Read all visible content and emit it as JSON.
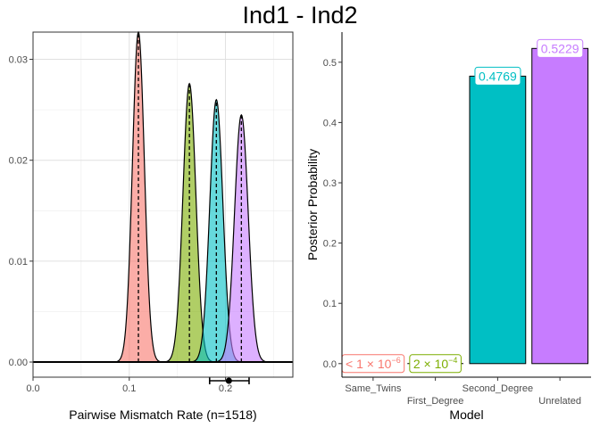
{
  "title": "Ind1 - Ind2",
  "chart_data": [
    {
      "type": "area",
      "xlabel": "Pairwise Mismatch Rate (n=1518)",
      "ylabel": "",
      "xlim": [
        0,
        0.27
      ],
      "ylim": [
        -0.0015,
        0.0327
      ],
      "x_ticks": [
        0.0,
        0.1,
        0.2
      ],
      "x_tick_labels": [
        "0.0",
        "0.1",
        "0.2"
      ],
      "y_ticks": [
        0.0,
        0.01,
        0.02,
        0.03
      ],
      "y_tick_labels": [
        "0.00",
        "0.01",
        "0.02",
        "0.03"
      ],
      "grid": true,
      "legend": "none",
      "series": [
        {
          "mean": 0.1095,
          "sd": 0.0062,
          "peak": 0.0327,
          "color": "#F8766D"
        },
        {
          "mean": 0.1625,
          "sd": 0.0067,
          "peak": 0.0276,
          "color": "#7CAE00"
        },
        {
          "mean": 0.1905,
          "sd": 0.0068,
          "peak": 0.026,
          "color": "#00BFC4"
        },
        {
          "mean": 0.2165,
          "sd": 0.0071,
          "peak": 0.0245,
          "color": "#C77CFF"
        }
      ],
      "observed": {
        "value": 0.2035,
        "lower": 0.1835,
        "upper": 0.2245
      }
    },
    {
      "type": "bar",
      "xlabel": "Model",
      "ylabel": "Posterior Probability",
      "ylim": [
        -0.0225,
        0.55
      ],
      "y_ticks": [
        0.0,
        0.1,
        0.2,
        0.3,
        0.4,
        0.5
      ],
      "y_tick_labels": [
        "0.0",
        "0.1",
        "0.2",
        "0.3",
        "0.4",
        "0.5"
      ],
      "categories": [
        "Same_Twins",
        "First_Degree",
        "Second_Degree",
        "Unrelated"
      ],
      "values": [
        1e-06,
        0.0002,
        0.4769,
        0.5229
      ],
      "labels": [
        {
          "base": "< 1 × 10",
          "exp": "−6"
        },
        {
          "base": "2 × 10",
          "exp": "−4"
        },
        {
          "base": "0.4769",
          "exp": ""
        },
        {
          "base": "0.5229",
          "exp": ""
        }
      ],
      "colors": [
        "#F8766D",
        "#7CAE00",
        "#00BFC4",
        "#C77CFF"
      ],
      "grid": false,
      "legend": "none"
    }
  ]
}
